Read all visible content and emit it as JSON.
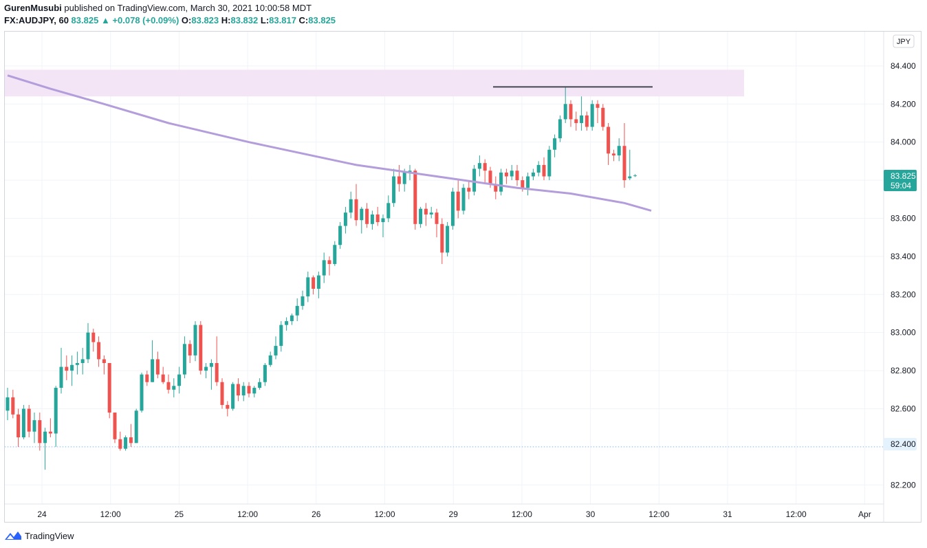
{
  "header": {
    "author": "GurenMusubi",
    "published_text": " published on TradingView.com, March 30, 2021 10:00:58 MDT",
    "symbol_line": "FX:AUDJPY, 60",
    "last": "83.825",
    "change_arrow": "▲",
    "change": "+0.078 (+0.09%)",
    "o_label": "O:",
    "o_value": "83.823",
    "h_label": "H:",
    "h_value": "83.832",
    "l_label": "L:",
    "l_value": "83.817",
    "c_label": "C:",
    "c_value": "83.825"
  },
  "currency_button": "JPY",
  "price_labels": {
    "last_price": "83.825",
    "countdown": "59:04",
    "reference_price": "82.400"
  },
  "footer": {
    "brand": "TradingView"
  },
  "colors": {
    "up": "#26a69a",
    "down": "#ef5350",
    "ma": "#b39ddb",
    "zone": "#f3e5f5",
    "resistance": "#434651",
    "grid": "#f0f3fa",
    "reference": "#64b5f6"
  },
  "chart_data": {
    "type": "candlestick",
    "symbol": "FX:AUDJPY",
    "interval": "60",
    "y_ticks": [
      82.2,
      82.4,
      82.6,
      82.8,
      83.0,
      83.2,
      83.4,
      83.6,
      83.8,
      84.0,
      84.2,
      84.4
    ],
    "y_tick_labels": [
      "82.200",
      "82.400",
      "82.600",
      "82.800",
      "83.000",
      "83.200",
      "83.400",
      "83.600",
      "83.800",
      "84.000",
      "84.200",
      "84.400"
    ],
    "ylim": [
      82.1,
      84.58
    ],
    "x_tick_labels": [
      "24",
      "12:00",
      "25",
      "12:00",
      "26",
      "12:00",
      "29",
      "12:00",
      "30",
      "12:00",
      "31",
      "12:00",
      "Apr"
    ],
    "grid": true,
    "resistance_zone": {
      "low": 84.24,
      "high": 84.38
    },
    "resistance_line": 84.29,
    "reference_line": 82.4,
    "candles": [
      {
        "o": 82.59,
        "h": 82.71,
        "l": 82.54,
        "c": 82.66
      },
      {
        "o": 82.66,
        "h": 82.7,
        "l": 82.55,
        "c": 82.57
      },
      {
        "o": 82.57,
        "h": 82.6,
        "l": 82.4,
        "c": 82.45
      },
      {
        "o": 82.45,
        "h": 82.62,
        "l": 82.44,
        "c": 82.6
      },
      {
        "o": 82.6,
        "h": 82.62,
        "l": 82.45,
        "c": 82.48
      },
      {
        "o": 82.48,
        "h": 82.58,
        "l": 82.42,
        "c": 82.54
      },
      {
        "o": 82.54,
        "h": 82.58,
        "l": 82.38,
        "c": 82.42
      },
      {
        "o": 82.42,
        "h": 82.5,
        "l": 82.28,
        "c": 82.48
      },
      {
        "o": 82.48,
        "h": 82.55,
        "l": 82.45,
        "c": 82.47
      },
      {
        "o": 82.47,
        "h": 82.72,
        "l": 82.4,
        "c": 82.71
      },
      {
        "o": 82.71,
        "h": 82.92,
        "l": 82.68,
        "c": 82.82
      },
      {
        "o": 82.82,
        "h": 82.88,
        "l": 82.75,
        "c": 82.8
      },
      {
        "o": 82.8,
        "h": 82.88,
        "l": 82.72,
        "c": 82.83
      },
      {
        "o": 82.83,
        "h": 82.9,
        "l": 82.78,
        "c": 82.84
      },
      {
        "o": 82.84,
        "h": 82.92,
        "l": 82.78,
        "c": 82.86
      },
      {
        "o": 82.86,
        "h": 83.05,
        "l": 82.84,
        "c": 83.0
      },
      {
        "o": 83.0,
        "h": 83.02,
        "l": 82.9,
        "c": 82.95
      },
      {
        "o": 82.95,
        "h": 82.98,
        "l": 82.82,
        "c": 82.86
      },
      {
        "o": 82.86,
        "h": 82.88,
        "l": 82.78,
        "c": 82.84
      },
      {
        "o": 82.84,
        "h": 82.84,
        "l": 82.55,
        "c": 82.58
      },
      {
        "o": 82.58,
        "h": 82.58,
        "l": 82.42,
        "c": 82.44
      },
      {
        "o": 82.44,
        "h": 82.48,
        "l": 82.38,
        "c": 82.39
      },
      {
        "o": 82.39,
        "h": 82.46,
        "l": 82.38,
        "c": 82.45
      },
      {
        "o": 82.45,
        "h": 82.52,
        "l": 82.4,
        "c": 82.42
      },
      {
        "o": 82.42,
        "h": 82.6,
        "l": 82.42,
        "c": 82.59
      },
      {
        "o": 82.59,
        "h": 82.79,
        "l": 82.58,
        "c": 82.78
      },
      {
        "o": 82.78,
        "h": 82.8,
        "l": 82.72,
        "c": 82.74
      },
      {
        "o": 82.74,
        "h": 82.96,
        "l": 82.74,
        "c": 82.86
      },
      {
        "o": 82.86,
        "h": 82.9,
        "l": 82.76,
        "c": 82.78
      },
      {
        "o": 82.78,
        "h": 82.82,
        "l": 82.73,
        "c": 82.74
      },
      {
        "o": 82.74,
        "h": 82.78,
        "l": 82.68,
        "c": 82.7
      },
      {
        "o": 82.7,
        "h": 82.76,
        "l": 82.66,
        "c": 82.72
      },
      {
        "o": 82.72,
        "h": 82.82,
        "l": 82.68,
        "c": 82.78
      },
      {
        "o": 82.78,
        "h": 82.98,
        "l": 82.76,
        "c": 82.94
      },
      {
        "o": 82.94,
        "h": 82.96,
        "l": 82.84,
        "c": 82.88
      },
      {
        "o": 82.88,
        "h": 83.06,
        "l": 82.85,
        "c": 83.04
      },
      {
        "o": 83.04,
        "h": 83.06,
        "l": 82.78,
        "c": 82.8
      },
      {
        "o": 82.8,
        "h": 82.84,
        "l": 82.76,
        "c": 82.82
      },
      {
        "o": 82.82,
        "h": 82.86,
        "l": 82.7,
        "c": 82.84
      },
      {
        "o": 82.84,
        "h": 82.98,
        "l": 82.72,
        "c": 82.74
      },
      {
        "o": 82.74,
        "h": 82.76,
        "l": 82.6,
        "c": 82.62
      },
      {
        "o": 82.62,
        "h": 82.64,
        "l": 82.56,
        "c": 82.6
      },
      {
        "o": 82.6,
        "h": 82.74,
        "l": 82.59,
        "c": 82.73
      },
      {
        "o": 82.73,
        "h": 82.76,
        "l": 82.64,
        "c": 82.67
      },
      {
        "o": 82.67,
        "h": 82.74,
        "l": 82.64,
        "c": 82.72
      },
      {
        "o": 82.72,
        "h": 82.74,
        "l": 82.66,
        "c": 82.68
      },
      {
        "o": 82.68,
        "h": 82.72,
        "l": 82.66,
        "c": 82.71
      },
      {
        "o": 82.71,
        "h": 82.76,
        "l": 82.7,
        "c": 82.74
      },
      {
        "o": 82.74,
        "h": 82.84,
        "l": 82.72,
        "c": 82.83
      },
      {
        "o": 82.83,
        "h": 82.9,
        "l": 82.82,
        "c": 82.88
      },
      {
        "o": 82.88,
        "h": 82.98,
        "l": 82.86,
        "c": 82.93
      },
      {
        "o": 82.93,
        "h": 83.06,
        "l": 82.9,
        "c": 83.04
      },
      {
        "o": 83.04,
        "h": 83.08,
        "l": 83.01,
        "c": 83.06
      },
      {
        "o": 83.06,
        "h": 83.1,
        "l": 83.04,
        "c": 83.09
      },
      {
        "o": 83.09,
        "h": 83.18,
        "l": 83.06,
        "c": 83.14
      },
      {
        "o": 83.14,
        "h": 83.22,
        "l": 83.12,
        "c": 83.19
      },
      {
        "o": 83.19,
        "h": 83.32,
        "l": 83.16,
        "c": 83.29
      },
      {
        "o": 83.29,
        "h": 83.3,
        "l": 83.2,
        "c": 83.23
      },
      {
        "o": 83.23,
        "h": 83.32,
        "l": 83.18,
        "c": 83.3
      },
      {
        "o": 83.3,
        "h": 83.42,
        "l": 83.26,
        "c": 83.38
      },
      {
        "o": 83.38,
        "h": 83.4,
        "l": 83.3,
        "c": 83.36
      },
      {
        "o": 83.36,
        "h": 83.48,
        "l": 83.35,
        "c": 83.46
      },
      {
        "o": 83.46,
        "h": 83.58,
        "l": 83.44,
        "c": 83.56
      },
      {
        "o": 83.56,
        "h": 83.66,
        "l": 83.52,
        "c": 83.63
      },
      {
        "o": 83.63,
        "h": 83.74,
        "l": 83.6,
        "c": 83.7
      },
      {
        "o": 83.7,
        "h": 83.78,
        "l": 83.56,
        "c": 83.59
      },
      {
        "o": 83.59,
        "h": 83.66,
        "l": 83.52,
        "c": 83.65
      },
      {
        "o": 83.65,
        "h": 83.68,
        "l": 83.55,
        "c": 83.57
      },
      {
        "o": 83.57,
        "h": 83.64,
        "l": 83.54,
        "c": 83.62
      },
      {
        "o": 83.62,
        "h": 83.66,
        "l": 83.56,
        "c": 83.58
      },
      {
        "o": 83.58,
        "h": 83.62,
        "l": 83.5,
        "c": 83.6
      },
      {
        "o": 83.6,
        "h": 83.72,
        "l": 83.58,
        "c": 83.68
      },
      {
        "o": 83.68,
        "h": 83.86,
        "l": 83.66,
        "c": 83.82
      },
      {
        "o": 83.82,
        "h": 83.88,
        "l": 83.74,
        "c": 83.78
      },
      {
        "o": 83.78,
        "h": 83.86,
        "l": 83.74,
        "c": 83.84
      },
      {
        "o": 83.84,
        "h": 83.88,
        "l": 83.8,
        "c": 83.85
      },
      {
        "o": 83.85,
        "h": 83.86,
        "l": 83.54,
        "c": 83.57
      },
      {
        "o": 83.57,
        "h": 83.66,
        "l": 83.55,
        "c": 83.65
      },
      {
        "o": 83.65,
        "h": 83.68,
        "l": 83.56,
        "c": 83.62
      },
      {
        "o": 83.62,
        "h": 83.66,
        "l": 83.6,
        "c": 83.63
      },
      {
        "o": 83.63,
        "h": 83.65,
        "l": 83.5,
        "c": 83.57
      },
      {
        "o": 83.57,
        "h": 83.6,
        "l": 83.36,
        "c": 83.42
      },
      {
        "o": 83.42,
        "h": 83.58,
        "l": 83.4,
        "c": 83.56
      },
      {
        "o": 83.56,
        "h": 83.76,
        "l": 83.54,
        "c": 83.74
      },
      {
        "o": 83.74,
        "h": 83.8,
        "l": 83.6,
        "c": 83.64
      },
      {
        "o": 83.64,
        "h": 83.78,
        "l": 83.62,
        "c": 83.76
      },
      {
        "o": 83.76,
        "h": 83.8,
        "l": 83.7,
        "c": 83.74
      },
      {
        "o": 83.74,
        "h": 83.88,
        "l": 83.72,
        "c": 83.86
      },
      {
        "o": 83.86,
        "h": 83.93,
        "l": 83.82,
        "c": 83.89
      },
      {
        "o": 83.89,
        "h": 83.91,
        "l": 83.78,
        "c": 83.85
      },
      {
        "o": 83.85,
        "h": 83.87,
        "l": 83.76,
        "c": 83.78
      },
      {
        "o": 83.78,
        "h": 83.82,
        "l": 83.7,
        "c": 83.74
      },
      {
        "o": 83.74,
        "h": 83.86,
        "l": 83.72,
        "c": 83.84
      },
      {
        "o": 83.84,
        "h": 83.86,
        "l": 83.78,
        "c": 83.82
      },
      {
        "o": 83.82,
        "h": 83.88,
        "l": 83.8,
        "c": 83.85
      },
      {
        "o": 83.85,
        "h": 83.88,
        "l": 83.77,
        "c": 83.8
      },
      {
        "o": 83.8,
        "h": 83.82,
        "l": 83.74,
        "c": 83.76
      },
      {
        "o": 83.76,
        "h": 83.84,
        "l": 83.72,
        "c": 83.82
      },
      {
        "o": 83.82,
        "h": 83.86,
        "l": 83.8,
        "c": 83.84
      },
      {
        "o": 83.84,
        "h": 83.9,
        "l": 83.82,
        "c": 83.88
      },
      {
        "o": 83.88,
        "h": 83.92,
        "l": 83.8,
        "c": 83.82
      },
      {
        "o": 83.82,
        "h": 83.98,
        "l": 83.8,
        "c": 83.96
      },
      {
        "o": 83.96,
        "h": 84.04,
        "l": 83.92,
        "c": 84.02
      },
      {
        "o": 84.02,
        "h": 84.14,
        "l": 84.0,
        "c": 84.12
      },
      {
        "o": 84.12,
        "h": 84.29,
        "l": 84.1,
        "c": 84.2
      },
      {
        "o": 84.2,
        "h": 84.22,
        "l": 84.08,
        "c": 84.12
      },
      {
        "o": 84.12,
        "h": 84.16,
        "l": 84.06,
        "c": 84.1
      },
      {
        "o": 84.1,
        "h": 84.24,
        "l": 84.06,
        "c": 84.14
      },
      {
        "o": 84.14,
        "h": 84.16,
        "l": 84.06,
        "c": 84.08
      },
      {
        "o": 84.08,
        "h": 84.22,
        "l": 84.06,
        "c": 84.2
      },
      {
        "o": 84.2,
        "h": 84.22,
        "l": 84.1,
        "c": 84.18
      },
      {
        "o": 84.18,
        "h": 84.2,
        "l": 84.06,
        "c": 84.08
      },
      {
        "o": 84.08,
        "h": 84.1,
        "l": 83.88,
        "c": 83.94
      },
      {
        "o": 83.94,
        "h": 83.96,
        "l": 83.9,
        "c": 83.93
      },
      {
        "o": 83.93,
        "h": 84.02,
        "l": 83.9,
        "c": 83.98
      },
      {
        "o": 83.98,
        "h": 84.1,
        "l": 83.76,
        "c": 83.8
      },
      {
        "o": 83.81,
        "h": 83.96,
        "l": 83.8,
        "c": 83.82
      },
      {
        "o": 83.823,
        "h": 83.832,
        "l": 83.817,
        "c": 83.825
      }
    ],
    "ma_line": [
      [
        0,
        84.35
      ],
      [
        8,
        84.28
      ],
      [
        18,
        84.2
      ],
      [
        30,
        84.1
      ],
      [
        45,
        84.0
      ],
      [
        55,
        83.94
      ],
      [
        65,
        83.88
      ],
      [
        75,
        83.84
      ],
      [
        85,
        83.8
      ],
      [
        95,
        83.76
      ],
      [
        105,
        83.73
      ],
      [
        115,
        83.68
      ],
      [
        120,
        83.64
      ]
    ]
  }
}
